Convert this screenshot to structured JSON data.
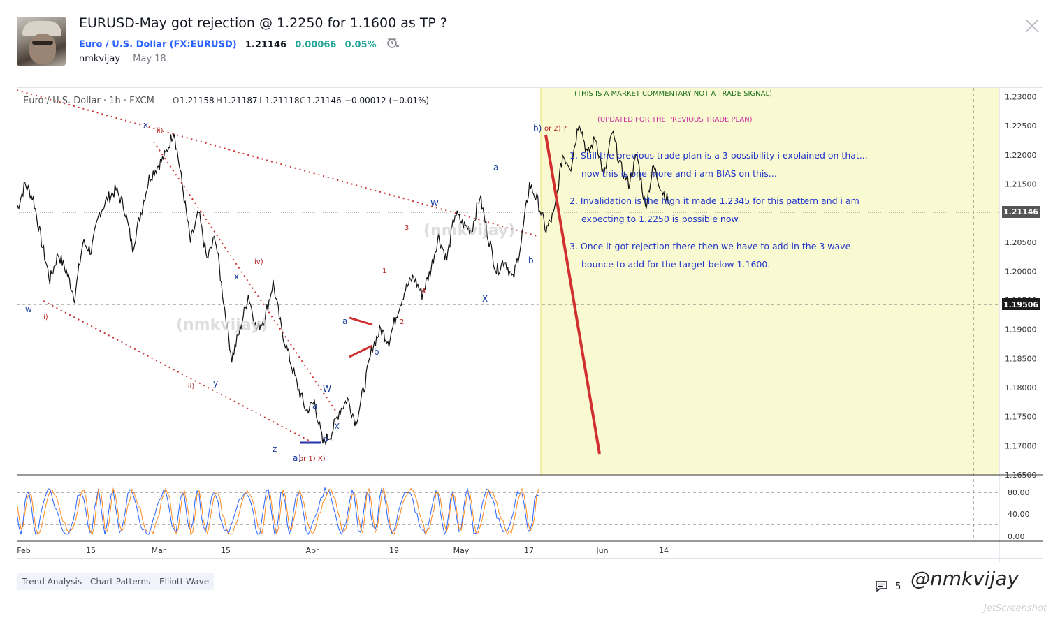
{
  "idea": {
    "title": "EURUSD-May got rejection @ 1.2250 for 1.1600 as TP ?",
    "symbol_name": "Euro / U.S. Dollar",
    "symbol_code": "(FX:EURUSD)",
    "price": "1.21146",
    "change": "0.00066",
    "change_pct": "0.05%",
    "author": "nmkvijay",
    "date": "May 18"
  },
  "chart": {
    "legend_symbol": "Euro / U.S. Dollar · 1h · FXCM",
    "ohlc": {
      "o_label": "O",
      "o": "1.21158",
      "h_label": "H",
      "h": "1.21187",
      "l_label": "L",
      "l": "1.21118",
      "c_label": "C",
      "c": "1.21146",
      "chg": "−0.00012 (−0.01%)"
    },
    "price_badge_current": "1.21146",
    "price_badge_level": "1.19506",
    "notes": {
      "disclaimer": "(THIS IS A MARKET COMMENTARY NOT A TRADE SIGNAL)",
      "updated": "(UPDATED FOR THE PREVIOUS TRADE PLAN)",
      "line1": "1.  Still the previous trade plan is a 3 possibility i explained on that...",
      "line2": "now this is one more and i am BIAS on this...",
      "line3": "2.  Invalidation is the high it made 1.2345 for this pattern and i am",
      "line4": "expecting to 1.2250 is possible now.",
      "line5": "3.  Once it got rejection there then we have to add in the 3 wave",
      "line6": "bounce to add for the target below 1.1600."
    },
    "watermark_text": "(nmkvijay)",
    "colors": {
      "highlight": "#fafad2",
      "trend_red": "#cc3333",
      "wave_blue": "#1a3fa0",
      "wave_red": "#b22222",
      "note_blue": "#1f35c9",
      "note_green": "#1a6d1a",
      "note_magenta": "#cc2f9f"
    }
  },
  "chart_data": {
    "type": "line",
    "title": "",
    "price_axis_ticks": [
      "1.23000",
      "1.22500",
      "1.22000",
      "1.21500",
      "1.21000",
      "1.20500",
      "1.20000",
      "1.19500",
      "1.19000",
      "1.18500",
      "1.18000",
      "1.17500",
      "1.17000",
      "1.16500"
    ],
    "time_axis_ticks": [
      "Feb",
      "15",
      "Mar",
      "15",
      "Apr",
      "19",
      "May",
      "17",
      "Jun",
      "14"
    ],
    "oscillator_ticks": [
      "80.00",
      "40.00",
      "0.00"
    ],
    "ylim": [
      1.165,
      1.2315
    ],
    "price_series_points": [
      [
        0,
        1.2105
      ],
      [
        1,
        1.215
      ],
      [
        2,
        1.2125
      ],
      [
        3,
        1.205
      ],
      [
        4,
        1.1985
      ],
      [
        5,
        1.203
      ],
      [
        6,
        1.2
      ],
      [
        7,
        1.1955
      ],
      [
        8,
        1.205
      ],
      [
        9,
        1.2035
      ],
      [
        10,
        1.21
      ],
      [
        11,
        1.2125
      ],
      [
        12,
        1.214
      ],
      [
        13,
        1.211
      ],
      [
        14,
        1.204
      ],
      [
        15,
        1.21
      ],
      [
        16,
        1.216
      ],
      [
        17,
        1.218
      ],
      [
        18,
        1.22
      ],
      [
        19,
        1.2243
      ],
      [
        20,
        1.215
      ],
      [
        21,
        1.205
      ],
      [
        22,
        1.21
      ],
      [
        23,
        1.202
      ],
      [
        24,
        1.206
      ],
      [
        25,
        1.195
      ],
      [
        26,
        1.185
      ],
      [
        27,
        1.19
      ],
      [
        28,
        1.196
      ],
      [
        29,
        1.19
      ],
      [
        30,
        1.192
      ],
      [
        31,
        1.198
      ],
      [
        32,
        1.19
      ],
      [
        33,
        1.185
      ],
      [
        34,
        1.18
      ],
      [
        35,
        1.176
      ],
      [
        36,
        1.1775
      ],
      [
        37,
        1.1705
      ],
      [
        38,
        1.172
      ],
      [
        39,
        1.176
      ],
      [
        40,
        1.178
      ],
      [
        41,
        1.174
      ],
      [
        42,
        1.18
      ],
      [
        43,
        1.187
      ],
      [
        44,
        1.19
      ],
      [
        45,
        1.188
      ],
      [
        46,
        1.193
      ],
      [
        47,
        1.197
      ],
      [
        48,
        1.199
      ],
      [
        49,
        1.196
      ],
      [
        50,
        1.2
      ],
      [
        51,
        1.206
      ],
      [
        52,
        1.202
      ],
      [
        53,
        1.21
      ],
      [
        54,
        1.208
      ],
      [
        55,
        1.207
      ],
      [
        56,
        1.213
      ],
      [
        57,
        1.206
      ],
      [
        58,
        1.2
      ],
      [
        59,
        1.202
      ],
      [
        60,
        1.1985
      ],
      [
        61,
        1.205
      ],
      [
        62,
        1.215
      ],
      [
        63,
        1.212
      ],
      [
        64,
        1.207
      ],
      [
        65,
        1.21
      ],
      [
        66,
        1.22
      ],
      [
        67,
        1.218
      ],
      [
        68,
        1.226
      ],
      [
        69,
        1.22
      ],
      [
        70,
        1.223
      ],
      [
        71,
        1.216
      ],
      [
        72,
        1.224
      ],
      [
        73,
        1.218
      ],
      [
        74,
        1.215
      ],
      [
        75,
        1.22
      ],
      [
        76,
        1.211
      ],
      [
        77,
        1.218
      ],
      [
        78,
        1.214
      ],
      [
        79,
        1.2115
      ]
    ],
    "x_range": [
      0,
      79
    ]
  },
  "tags": [
    "Trend Analysis",
    "Chart Patterns",
    "Elliott Wave"
  ],
  "footer": {
    "comments_count": "5",
    "watermark": "@nmkvijay",
    "jet": "JetScreenshot"
  }
}
